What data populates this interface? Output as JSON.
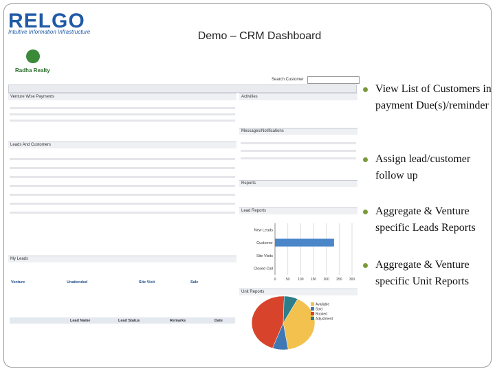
{
  "logo": {
    "name": "RELGO",
    "tagline": "Intuitive Information Infrastructure"
  },
  "title": "Demo – CRM Dashboard",
  "bullets": [
    "View List of Customers in payment Due(s)/reminder",
    "Assign lead/customer follow up",
    "Aggregate & Venture specific Leads Reports",
    "Aggregate & Venture specific Unit Reports"
  ],
  "screenshot": {
    "brand": "Radha Realty",
    "search_label": "Search Customer",
    "left_panels": [
      "Venture Wise Payments",
      "Leads And Customers",
      "My Leads"
    ],
    "summary_headers": [
      "Venture",
      "Unattended",
      "Site Visit",
      "Sale"
    ],
    "lead_headers": [
      "Lead Name",
      "Lead Status",
      "Remarks",
      "Date"
    ],
    "right_panels": [
      "Activities",
      "Messages/Notifications",
      "Reports",
      "Lead Reports",
      "Unit Reports"
    ],
    "lead_report": {
      "type": "bar",
      "categories": [
        "New Leads",
        "Customer",
        "Site Visits",
        "Closed Call"
      ],
      "values": [
        0,
        230,
        0,
        0
      ],
      "color": "#4a86c8",
      "xlim": [
        0,
        300
      ],
      "xticks": [
        0,
        50,
        100,
        150,
        200,
        250,
        300
      ]
    },
    "unit_report": {
      "type": "pie",
      "categories": [
        "Available",
        "Sold",
        "Booked",
        "Adjustment"
      ],
      "values": [
        40,
        8,
        45,
        7
      ],
      "colors": [
        "#f2c14e",
        "#3f78b5",
        "#d8442b",
        "#2d7d8a"
      ]
    }
  }
}
